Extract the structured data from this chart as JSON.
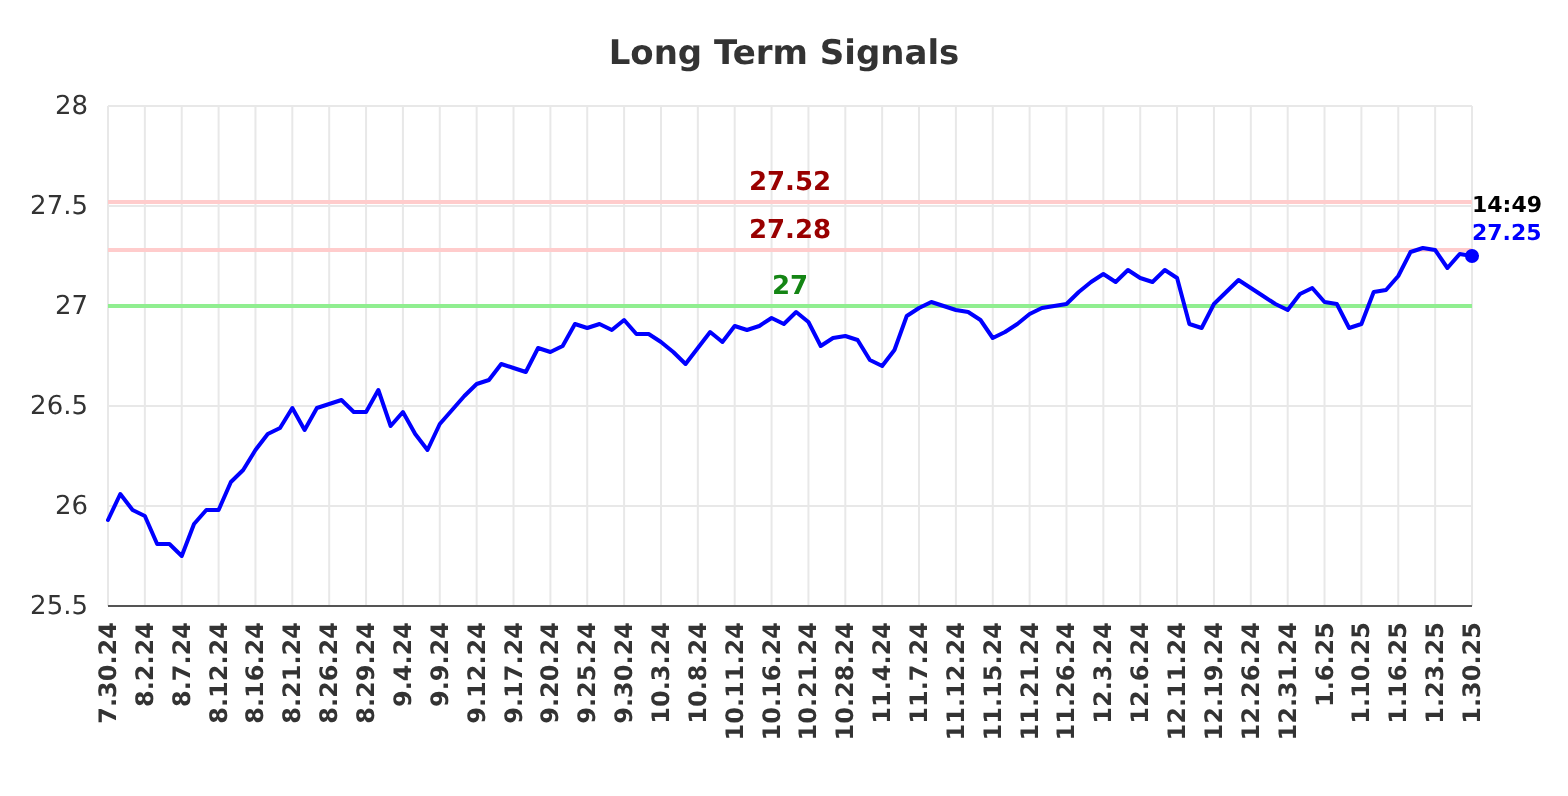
{
  "chart_data": {
    "type": "line",
    "title": "Long Term Signals",
    "categories": [
      "7.30.24",
      null,
      null,
      "8.2.24",
      null,
      null,
      "8.7.24",
      null,
      null,
      "8.12.24",
      null,
      null,
      "8.16.24",
      null,
      null,
      "8.21.24",
      null,
      null,
      "8.26.24",
      null,
      null,
      "8.29.24",
      null,
      null,
      "9.4.24",
      null,
      null,
      "9.9.24",
      null,
      null,
      "9.12.24",
      null,
      null,
      "9.17.24",
      null,
      null,
      "9.20.24",
      null,
      null,
      "9.25.24",
      null,
      null,
      "9.30.24",
      null,
      null,
      "10.3.24",
      null,
      null,
      "10.8.24",
      null,
      null,
      "10.11.24",
      null,
      null,
      "10.16.24",
      null,
      null,
      "10.21.24",
      null,
      null,
      "10.28.24",
      null,
      null,
      "11.4.24",
      null,
      null,
      "11.7.24",
      null,
      null,
      "11.12.24",
      null,
      null,
      "11.15.24",
      null,
      null,
      "11.21.24",
      null,
      null,
      "11.26.24",
      null,
      null,
      "12.3.24",
      null,
      null,
      "12.6.24",
      null,
      null,
      "12.11.24",
      null,
      null,
      "12.19.24",
      null,
      null,
      "12.26.24",
      null,
      null,
      "12.31.24",
      null,
      null,
      "1.6.25",
      null,
      null,
      "1.10.25",
      null,
      null,
      "1.16.25",
      null,
      null,
      "1.23.25",
      null,
      null,
      "1.30.25"
    ],
    "series": [
      {
        "color": "#0000ff",
        "values": [
          25.93,
          26.06,
          25.98,
          25.95,
          25.81,
          25.81,
          25.75,
          25.91,
          25.98,
          25.98,
          26.12,
          26.18,
          26.28,
          26.36,
          26.39,
          26.49,
          26.38,
          26.49,
          26.51,
          26.53,
          26.47,
          26.47,
          26.58,
          26.4,
          26.47,
          26.36,
          26.28,
          26.41,
          26.48,
          26.55,
          26.61,
          26.63,
          26.71,
          26.69,
          26.67,
          26.79,
          26.77,
          26.8,
          26.91,
          26.89,
          26.91,
          26.88,
          26.93,
          26.86,
          26.86,
          26.82,
          26.77,
          26.71,
          26.79,
          26.87,
          26.82,
          26.9,
          26.88,
          26.9,
          26.94,
          26.91,
          26.97,
          26.92,
          26.8,
          26.84,
          26.85,
          26.83,
          26.73,
          26.7,
          26.78,
          26.95,
          26.99,
          27.02,
          27.0,
          26.98,
          26.97,
          26.93,
          26.84,
          26.87,
          26.91,
          26.96,
          26.99,
          27.0,
          27.01,
          27.07,
          27.12,
          27.16,
          27.12,
          27.18,
          27.14,
          27.12,
          27.18,
          27.14,
          26.91,
          26.89,
          27.01,
          27.07,
          27.13,
          27.09,
          27.05,
          27.01,
          26.98,
          27.06,
          27.09,
          27.02,
          27.01,
          26.89,
          26.91,
          27.07,
          27.08,
          27.15,
          27.27,
          27.29,
          27.28,
          27.19,
          27.26,
          27.25
        ]
      }
    ],
    "ylim": [
      25.5,
      28
    ],
    "yticks": [
      25.5,
      26,
      26.5,
      27,
      27.5,
      28
    ],
    "grid": true,
    "ref_lines": [
      {
        "axis": "y",
        "value": 27.52,
        "label": "27.52",
        "color": "#ffcccc"
      },
      {
        "axis": "y",
        "value": 27.28,
        "label": "27.28",
        "color": "#ffcccc"
      },
      {
        "axis": "y",
        "value": 27,
        "label": "27",
        "color": "#90ee90"
      }
    ],
    "annotations": [
      {
        "text": "14:49",
        "x": "1.30.25",
        "y": 27.25
      },
      {
        "text": "27.25",
        "x": "1.30.25",
        "y": 27.25
      }
    ]
  }
}
